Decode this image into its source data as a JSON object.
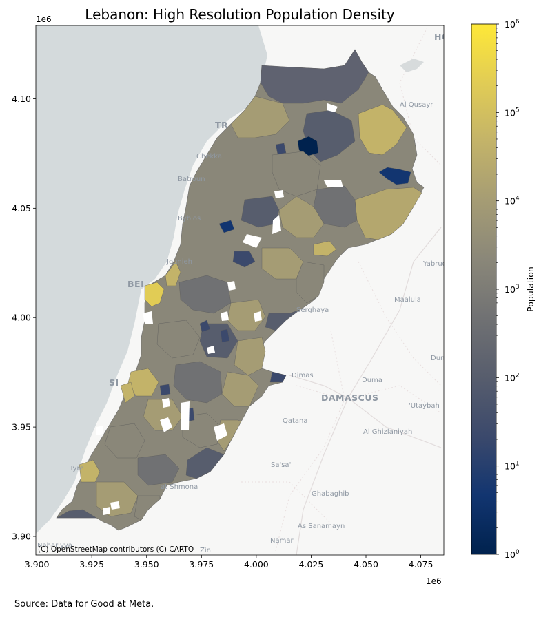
{
  "title": "Lebanon: High Resolution Population Density",
  "source_note": "Source: Data for Good at Meta.",
  "attribution": "(C) OpenStreetMap contributors (C) CARTO",
  "axes": {
    "x_offset_label": "1e6",
    "y_offset_label": "1e6",
    "x_ticks": [
      {
        "value": 3.9,
        "label": "3.900"
      },
      {
        "value": 3.925,
        "label": "3.925"
      },
      {
        "value": 3.95,
        "label": "3.950"
      },
      {
        "value": 3.975,
        "label": "3.975"
      },
      {
        "value": 4.0,
        "label": "4.000"
      },
      {
        "value": 4.025,
        "label": "4.025"
      },
      {
        "value": 4.05,
        "label": "4.050"
      },
      {
        "value": 4.075,
        "label": "4.075"
      }
    ],
    "y_ticks": [
      {
        "value": 3.9,
        "label": "3.90"
      },
      {
        "value": 3.95,
        "label": "3.95"
      },
      {
        "value": 4.0,
        "label": "4.00"
      },
      {
        "value": 4.05,
        "label": "4.05"
      },
      {
        "value": 4.1,
        "label": "4.10"
      }
    ],
    "xlim": [
      3.8995,
      4.0855
    ],
    "ylim": [
      3.8915,
      4.1335
    ]
  },
  "colorbar": {
    "label": "Population",
    "scale": "log",
    "colormap": "cividis",
    "ticks": [
      {
        "exp": 0,
        "base": "10",
        "sup": "0"
      },
      {
        "exp": 1,
        "base": "10",
        "sup": "1"
      },
      {
        "exp": 2,
        "base": "10",
        "sup": "2"
      },
      {
        "exp": 3,
        "base": "10",
        "sup": "3"
      },
      {
        "exp": 4,
        "base": "10",
        "sup": "4"
      },
      {
        "exp": 5,
        "base": "10",
        "sup": "5"
      },
      {
        "exp": 6,
        "base": "10",
        "sup": "6"
      }
    ],
    "colors": [
      "#00224e",
      "#123570",
      "#3b496c",
      "#575d6d",
      "#707173",
      "#8a8779",
      "#a59c74",
      "#c3b369",
      "#e1cc55",
      "#fee838"
    ]
  },
  "basemap_labels": [
    {
      "text": "TR",
      "kind": "city"
    },
    {
      "text": "BEI",
      "kind": "city"
    },
    {
      "text": "DAMASCUS",
      "kind": "city"
    },
    {
      "text": "Al Qusayr",
      "kind": "town"
    },
    {
      "text": "Yabrud",
      "kind": "town"
    },
    {
      "text": "Maalula",
      "kind": "town"
    },
    {
      "text": "Serghaya",
      "kind": "town"
    },
    {
      "text": "Dimas",
      "kind": "town"
    },
    {
      "text": "Duma",
      "kind": "town"
    },
    {
      "text": "Dum",
      "kind": "town"
    },
    {
      "text": "'Utaybah",
      "kind": "town"
    },
    {
      "text": "Qatana",
      "kind": "town"
    },
    {
      "text": "Al Ghizlaniyah",
      "kind": "town"
    },
    {
      "text": "Sa'sa'",
      "kind": "town"
    },
    {
      "text": "Ghabaghib",
      "kind": "town"
    },
    {
      "text": "As Sanamayn",
      "kind": "town"
    },
    {
      "text": "Namar",
      "kind": "town"
    },
    {
      "text": "Chekka",
      "kind": "town"
    },
    {
      "text": "Batroun",
      "kind": "town"
    },
    {
      "text": "Byblos",
      "kind": "town"
    },
    {
      "text": "Jounieh",
      "kind": "town"
    },
    {
      "text": "SI",
      "kind": "town"
    },
    {
      "text": "Tyre",
      "kind": "town"
    },
    {
      "text": "at Shmona",
      "kind": "town"
    },
    {
      "text": "Nahariyya",
      "kind": "town"
    },
    {
      "text": "Zin",
      "kind": "town"
    },
    {
      "text": "HO",
      "kind": "town"
    }
  ]
}
